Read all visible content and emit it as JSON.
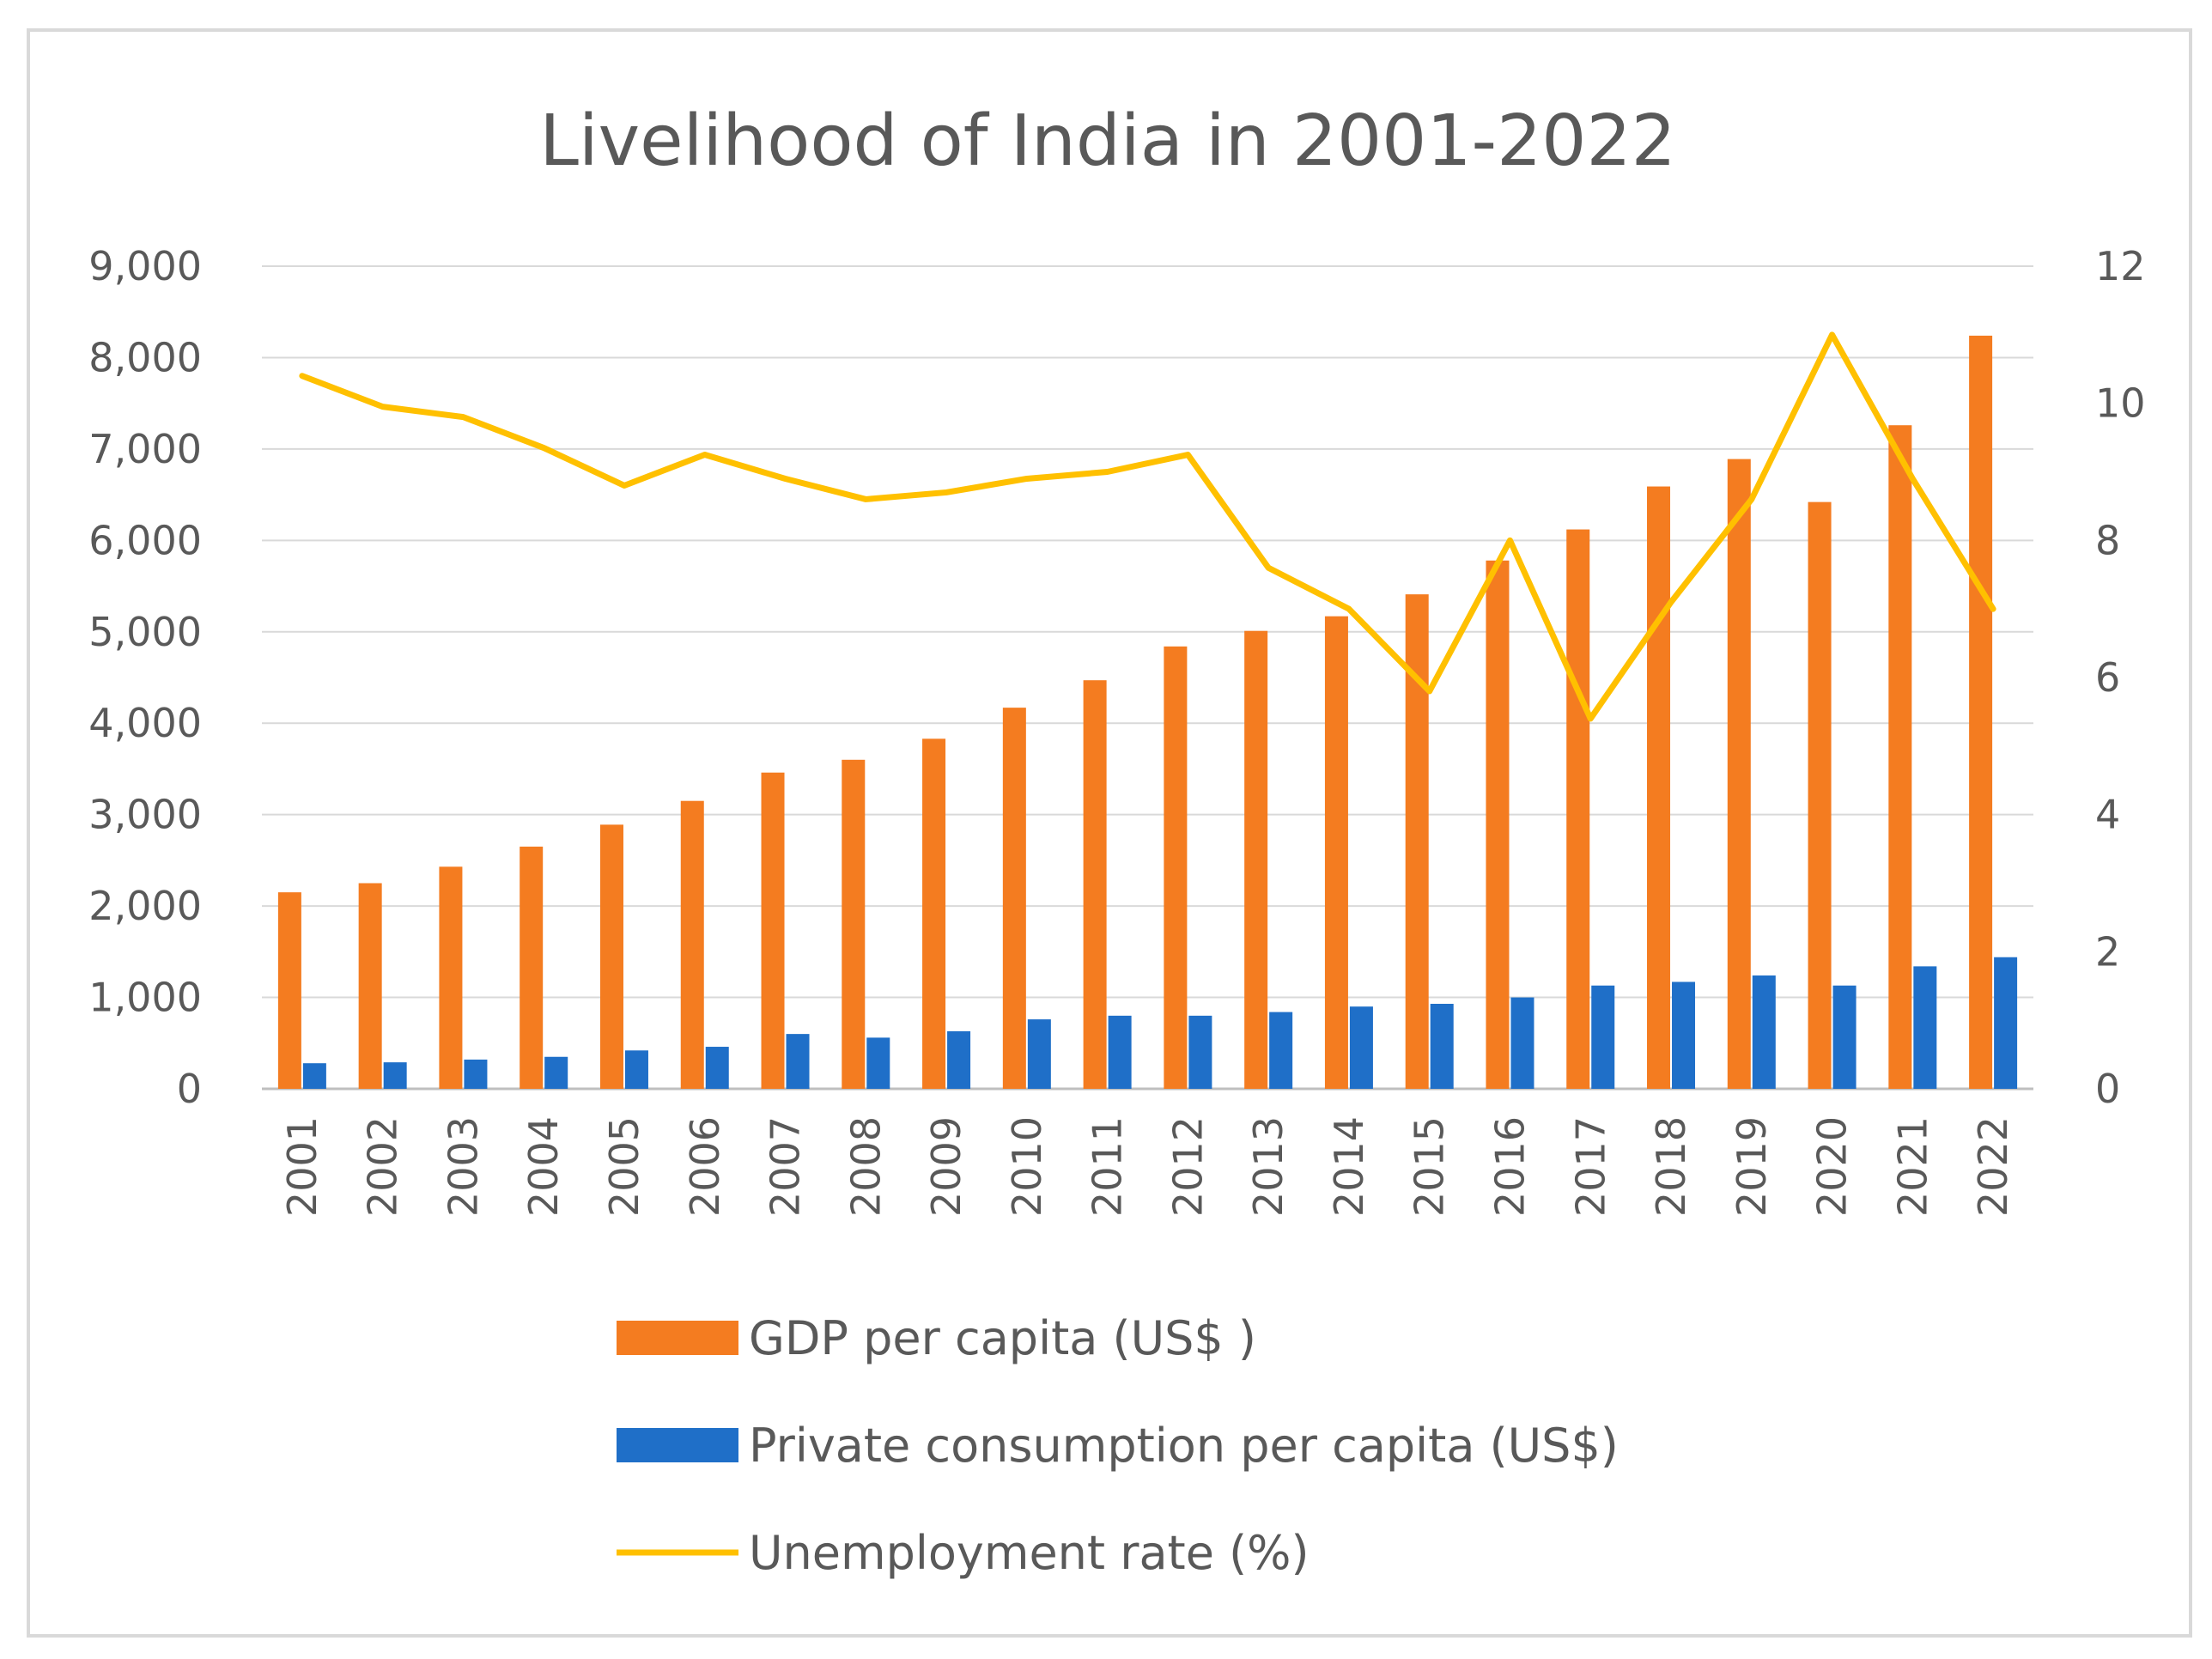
{
  "chart_data": {
    "type": "bar",
    "title": "Livelihood of India in 2001-2022",
    "xlabel": "",
    "ylabel": "",
    "y2label": "",
    "categories": [
      "2001",
      "2002",
      "2003",
      "2004",
      "2005",
      "2006",
      "2007",
      "2008",
      "2009",
      "2010",
      "2011",
      "2012",
      "2013",
      "2014",
      "2015",
      "2016",
      "2017",
      "2018",
      "2019",
      "2020",
      "2021",
      "2022"
    ],
    "ylim": [
      0,
      9000
    ],
    "y_ticks": [
      "0",
      "1,000",
      "2,000",
      "3,000",
      "4,000",
      "5,000",
      "6,000",
      "7,000",
      "8,000",
      "9,000"
    ],
    "y2lim": [
      0,
      12
    ],
    "y2_ticks": [
      "0",
      "2",
      "4",
      "6",
      "8",
      "10",
      "12"
    ],
    "grid": true,
    "legend_position": "bottom",
    "series": [
      {
        "name": "GDP per capita (US$ )",
        "type": "bar",
        "axis": "left",
        "color": "#F47C20",
        "values": [
          2150,
          2250,
          2430,
          2650,
          2890,
          3150,
          3460,
          3600,
          3830,
          4170,
          4470,
          4840,
          5010,
          5170,
          5410,
          5780,
          6120,
          6590,
          6890,
          6420,
          7260,
          8240
        ]
      },
      {
        "name": "Private consumption per capita (US$)",
        "type": "bar",
        "axis": "left",
        "color": "#1F6FC8",
        "values": [
          280,
          290,
          320,
          350,
          420,
          460,
          600,
          560,
          630,
          760,
          800,
          800,
          840,
          900,
          930,
          1000,
          1130,
          1170,
          1240,
          1130,
          1340,
          1440
        ]
      },
      {
        "name": "Unemployment rate (%)",
        "type": "line",
        "axis": "right",
        "color": "#FFC000",
        "values": [
          10.4,
          9.95,
          9.8,
          9.35,
          8.8,
          9.25,
          8.9,
          8.6,
          8.7,
          8.9,
          9.0,
          9.25,
          7.6,
          7.0,
          5.8,
          8.0,
          5.4,
          7.1,
          8.6,
          11.0,
          8.9,
          7.0
        ]
      }
    ]
  }
}
